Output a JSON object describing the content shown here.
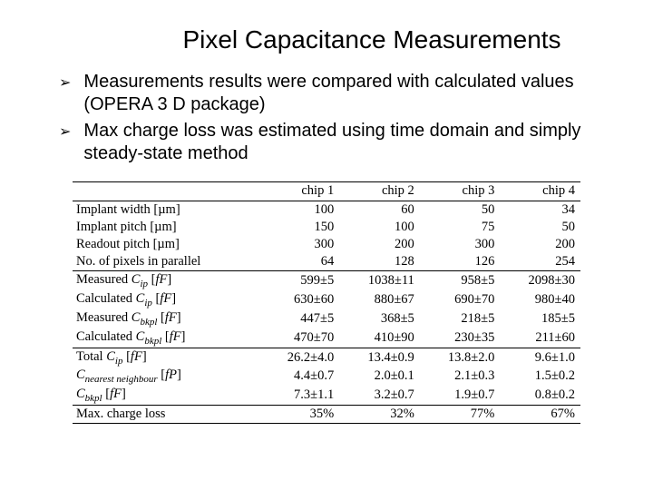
{
  "title": "Pixel Capacitance Measurements",
  "bullets": [
    "Measurements results were compared with calculated values (OPERA 3 D package)",
    "Max charge loss was estimated using time domain and simply steady-state method"
  ],
  "table": {
    "headers": [
      "",
      "chip 1",
      "chip 2",
      "chip 3",
      "chip 4"
    ],
    "group1": [
      {
        "label": "Implant width [µm]",
        "c": [
          "100",
          "60",
          "50",
          "34"
        ]
      },
      {
        "label": "Implant pitch [µm]",
        "c": [
          "150",
          "100",
          "75",
          "50"
        ]
      },
      {
        "label": "Readout pitch [µm]",
        "c": [
          "300",
          "200",
          "300",
          "200"
        ]
      },
      {
        "label": "No. of pixels in parallel",
        "c": [
          "64",
          "128",
          "126",
          "254"
        ]
      }
    ],
    "group2": [
      {
        "label_html": "Measured <span class='ital'>C<span class='sub'>ip</span></span> [<span class='ital'>fF</span>]",
        "c": [
          "599±5",
          "1038±11",
          "958±5",
          "2098±30"
        ]
      },
      {
        "label_html": "Calculated <span class='ital'>C<span class='sub'>ip</span></span> [<span class='ital'>fF</span>]",
        "c": [
          "630±60",
          "880±67",
          "690±70",
          "980±40"
        ]
      },
      {
        "label_html": "Measured <span class='ital'>C<span class='sub'>bkpl</span></span> [<span class='ital'>fF</span>]",
        "c": [
          "447±5",
          "368±5",
          "218±5",
          "185±5"
        ]
      },
      {
        "label_html": "Calculated <span class='ital'>C<span class='sub'>bkpl</span></span> [<span class='ital'>fF</span>]",
        "c": [
          "470±70",
          "410±90",
          "230±35",
          "211±60"
        ]
      }
    ],
    "group3": [
      {
        "label_html": "Total <span class='ital'>C<span class='sub'>ip</span></span> [<span class='ital'>fF</span>]",
        "c": [
          "26.2±4.0",
          "13.4±0.9",
          "13.8±2.0",
          "9.6±1.0"
        ]
      },
      {
        "label_html": "<span class='ital'>C<span class='sub'>nearest neighbour</span></span> [<span class='ital'>fP</span>]",
        "c": [
          "4.4±0.7",
          "2.0±0.1",
          "2.1±0.3",
          "1.5±0.2"
        ]
      },
      {
        "label_html": "<span class='ital'>C<span class='sub'>bkpl</span></span> [<span class='ital'>fF</span>]",
        "c": [
          "7.3±1.1",
          "3.2±0.7",
          "1.9±0.7",
          "0.8±0.2"
        ]
      }
    ],
    "group4": [
      {
        "label": "Max. charge loss",
        "c": [
          "35%",
          "32%",
          "77%",
          "67%"
        ]
      }
    ]
  },
  "colors": {
    "text": "#000000",
    "bg": "#ffffff",
    "bullet": "#000000",
    "rule": "#000000"
  },
  "fontsize": {
    "title": 28,
    "bullet": 20,
    "table": 14.5
  }
}
